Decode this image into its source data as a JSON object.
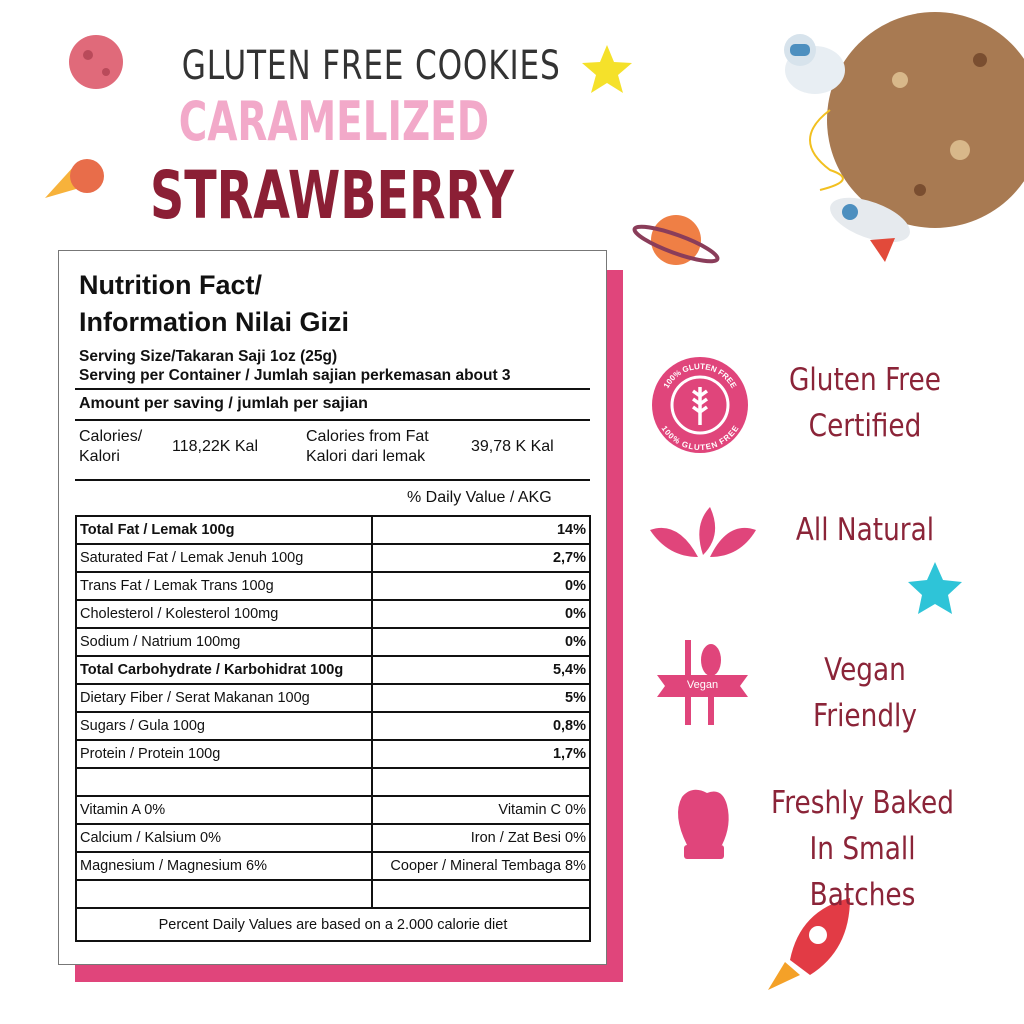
{
  "header": {
    "line1": "GLUTEN FREE COOKIES",
    "line2": "CARAMELIZED",
    "line3": "STRAWBERRY"
  },
  "label": {
    "title1": "Nutrition Fact/",
    "title2": "Information Nilai Gizi",
    "serving_size": "Serving Size/Takaran Saji 1oz (25g)",
    "serving_container": "Serving per Container / Jumlah sajian perkemasan about 3",
    "amount": "Amount per saving / jumlah per sajian",
    "calories_label1": "Calories/",
    "calories_label2": "Kalori",
    "calories_value": "118,22K Kal",
    "fat_cal_label1": "Calories from Fat",
    "fat_cal_label2": "Kalori dari lemak",
    "fat_cal_value": "39,78 K Kal",
    "dv_header": "% Daily Value / AKG",
    "rows": [
      {
        "label": "Total Fat / Lemak 100g",
        "value": "14%",
        "bold": true
      },
      {
        "label": "Saturated Fat / Lemak Jenuh 100g",
        "value": "2,7%"
      },
      {
        "label": "Trans Fat / Lemak Trans 100g",
        "value": "0%"
      },
      {
        "label": "Cholesterol / Kolesterol 100mg",
        "value": "0%"
      },
      {
        "label": "Sodium / Natrium 100mg",
        "value": "0%"
      },
      {
        "label": "Total Carbohydrate / Karbohidrat 100g",
        "value": "5,4%",
        "bold": true
      },
      {
        "label": "Dietary Fiber / Serat Makanan 100g",
        "value": "5%"
      },
      {
        "label": "Sugars / Gula 100g",
        "value": "0,8%"
      },
      {
        "label": "Protein / Protein 100g",
        "value": "1,7%"
      }
    ],
    "minerals": [
      {
        "left": "Vitamin A 0%",
        "right": "Vitamin C 0%"
      },
      {
        "left": "Calcium / Kalsium 0%",
        "right": "Iron / Zat Besi 0%"
      },
      {
        "left": "Magnesium / Magnesium 6%",
        "right": "Cooper / Mineral Tembaga 8%"
      }
    ],
    "footer": "Percent Daily Values are based on a 2.000 calorie diet"
  },
  "features": [
    {
      "line1": "Gluten Free",
      "line2": "Certified",
      "icon": "gluten-free-badge-icon",
      "badge_text": "100% GLUTEN FREE"
    },
    {
      "line1": "All Natural",
      "icon": "leaves-icon"
    },
    {
      "line1": "Vegan Friendly",
      "icon": "vegan-fork-knife-icon",
      "badge_text": "Vegan"
    },
    {
      "line1": "Freshly Baked",
      "line2": "In Small Batches",
      "icon": "oven-mitt-icon"
    }
  ],
  "colors": {
    "pink": "#e0457b",
    "maroon": "#8b1f35",
    "light_pink": "#f2a9c9"
  }
}
